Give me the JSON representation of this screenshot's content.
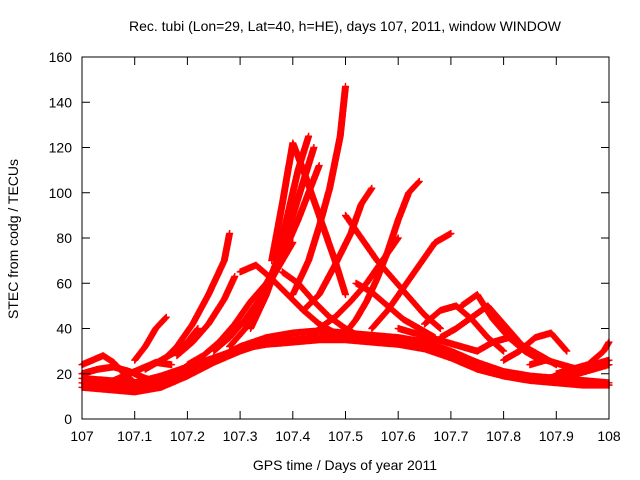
{
  "chart_data": {
    "type": "scatter",
    "title": "Rec. tubi (Lon=29, Lat=40, h=HE), days 107, 2011, window WINDOW",
    "xlabel": "GPS time / Days of year 2011",
    "ylabel": "STEC from codg / TECUs",
    "xlim": [
      107,
      108
    ],
    "ylim": [
      0,
      160
    ],
    "xticks": [
      107,
      107.1,
      107.2,
      107.3,
      107.4,
      107.5,
      107.6,
      107.7,
      107.8,
      107.9,
      108
    ],
    "xtick_labels": [
      "107",
      "107.1",
      "107.2",
      "107.3",
      "107.4",
      "107.5",
      "107.6",
      "107.7",
      "107.8",
      "107.9",
      "108"
    ],
    "yticks": [
      0,
      20,
      40,
      60,
      80,
      100,
      120,
      140,
      160
    ],
    "ytick_labels": [
      "0",
      "20",
      "40",
      "60",
      "80",
      "100",
      "120",
      "140",
      "160"
    ],
    "marker": "+",
    "color": "#ff0000",
    "grid": false,
    "legend": "none",
    "series": [
      {
        "x": [
          107.0,
          107.05,
          107.1,
          107.15,
          107.2,
          107.25,
          107.3,
          107.35,
          107.4,
          107.45,
          107.5,
          107.55,
          107.6,
          107.65,
          107.7,
          107.75,
          107.8,
          107.85,
          107.9,
          107.95,
          108.0
        ],
        "values": [
          14,
          13,
          12,
          14,
          19,
          25,
          30,
          34,
          35,
          36,
          36,
          35,
          34,
          32,
          28,
          23,
          19,
          17,
          16,
          15,
          15
        ]
      },
      {
        "x": [
          107.0,
          107.05,
          107.1,
          107.15,
          107.2,
          107.25,
          107.3,
          107.35,
          107.4,
          107.45,
          107.5,
          107.55,
          107.6,
          107.65,
          107.7,
          107.75,
          107.8,
          107.85,
          107.9,
          107.95,
          108.0
        ],
        "values": [
          16,
          15,
          14,
          17,
          21,
          26,
          32,
          36,
          38,
          39,
          38,
          37,
          36,
          34,
          30,
          25,
          21,
          19,
          18,
          17,
          16
        ]
      },
      {
        "x": [
          107.0,
          107.05,
          107.1,
          107.15,
          107.2,
          107.25,
          107.3,
          107.35,
          107.4,
          107.45,
          107.5,
          107.55,
          107.6,
          107.65,
          107.7,
          107.75,
          107.8,
          107.85,
          107.9,
          107.95,
          108.0
        ],
        "values": [
          18,
          17,
          16,
          19,
          23,
          27,
          31,
          33,
          34,
          35,
          35,
          34,
          33,
          31,
          27,
          22,
          19,
          18,
          17,
          16,
          15
        ]
      },
      {
        "x": [
          107.0,
          107.02,
          107.04,
          107.06,
          107.08,
          107.1
        ],
        "values": [
          24,
          26,
          28,
          25,
          20,
          16
        ]
      },
      {
        "x": [
          107.0,
          107.03,
          107.06,
          107.09,
          107.12,
          107.15
        ],
        "values": [
          20,
          22,
          23,
          21,
          18,
          16
        ]
      },
      {
        "x": [
          107.02,
          107.05,
          107.08,
          107.11,
          107.14,
          107.17
        ],
        "values": [
          14,
          16,
          19,
          22,
          25,
          24
        ]
      },
      {
        "x": [
          107.1,
          107.12,
          107.14,
          107.16
        ],
        "values": [
          26,
          32,
          40,
          45
        ]
      },
      {
        "x": [
          107.12,
          107.15,
          107.18,
          107.2,
          107.22
        ],
        "values": [
          22,
          26,
          30,
          34,
          40
        ]
      },
      {
        "x": [
          107.15,
          107.18,
          107.21,
          107.24,
          107.27,
          107.28
        ],
        "values": [
          25,
          32,
          42,
          55,
          70,
          82
        ]
      },
      {
        "x": [
          107.18,
          107.21,
          107.24,
          107.27,
          107.29
        ],
        "values": [
          28,
          34,
          42,
          53,
          63
        ]
      },
      {
        "x": [
          107.2,
          107.23,
          107.26,
          107.29,
          107.32,
          107.35
        ],
        "values": [
          24,
          28,
          34,
          42,
          52,
          60
        ]
      },
      {
        "x": [
          107.25,
          107.28,
          107.31,
          107.34,
          107.37,
          107.4
        ],
        "values": [
          30,
          36,
          44,
          54,
          66,
          78
        ]
      },
      {
        "x": [
          107.28,
          107.31,
          107.34,
          107.37,
          107.39,
          107.41,
          107.43
        ],
        "values": [
          32,
          40,
          52,
          70,
          90,
          110,
          125
        ]
      },
      {
        "x": [
          107.32,
          107.35,
          107.38,
          107.4,
          107.42,
          107.44
        ],
        "values": [
          40,
          55,
          75,
          90,
          105,
          120
        ]
      },
      {
        "x": [
          107.36,
          107.38,
          107.4,
          107.42,
          107.45,
          107.48,
          107.5
        ],
        "values": [
          70,
          95,
          122,
          110,
          90,
          70,
          55
        ]
      },
      {
        "x": [
          107.35,
          107.38,
          107.41,
          107.43,
          107.45
        ],
        "values": [
          60,
          72,
          88,
          100,
          112
        ]
      },
      {
        "x": [
          107.3,
          107.33,
          107.36,
          107.39,
          107.42,
          107.45,
          107.48
        ],
        "values": [
          65,
          68,
          62,
          55,
          48,
          42,
          38
        ]
      },
      {
        "x": [
          107.38,
          107.41,
          107.44,
          107.47,
          107.5,
          107.53
        ],
        "values": [
          65,
          60,
          52,
          45,
          40,
          36
        ]
      },
      {
        "x": [
          107.4,
          107.43,
          107.45,
          107.47,
          107.49,
          107.5
        ],
        "values": [
          55,
          70,
          85,
          102,
          125,
          147
        ]
      },
      {
        "x": [
          107.42,
          107.45,
          107.48,
          107.51,
          107.53,
          107.55
        ],
        "values": [
          48,
          55,
          68,
          82,
          95,
          102
        ]
      },
      {
        "x": [
          107.45,
          107.48,
          107.51,
          107.54,
          107.57,
          107.6
        ],
        "values": [
          40,
          45,
          52,
          60,
          70,
          80
        ]
      },
      {
        "x": [
          107.5,
          107.52,
          107.54,
          107.56,
          107.58,
          107.6,
          107.62,
          107.64
        ],
        "values": [
          38,
          44,
          52,
          62,
          74,
          88,
          100,
          105
        ]
      },
      {
        "x": [
          107.5,
          107.53,
          107.56,
          107.59,
          107.62,
          107.65,
          107.68
        ],
        "values": [
          90,
          80,
          70,
          62,
          54,
          46,
          40
        ]
      },
      {
        "x": [
          107.55,
          107.58,
          107.61,
          107.64,
          107.67,
          107.7
        ],
        "values": [
          40,
          48,
          58,
          68,
          78,
          82
        ]
      },
      {
        "x": [
          107.52,
          107.55,
          107.58,
          107.61,
          107.64,
          107.67
        ],
        "values": [
          60,
          56,
          50,
          44,
          40,
          36
        ]
      },
      {
        "x": [
          107.6,
          107.63,
          107.66,
          107.69,
          107.72,
          107.75
        ],
        "values": [
          40,
          38,
          36,
          34,
          32,
          30
        ]
      },
      {
        "x": [
          107.65,
          107.68,
          107.71,
          107.74,
          107.77,
          107.8
        ],
        "values": [
          42,
          48,
          50,
          44,
          36,
          30
        ]
      },
      {
        "x": [
          107.68,
          107.71,
          107.74,
          107.77,
          107.8,
          107.83
        ],
        "values": [
          36,
          40,
          45,
          50,
          42,
          34
        ]
      },
      {
        "x": [
          107.72,
          107.75,
          107.78,
          107.81,
          107.84,
          107.87
        ],
        "values": [
          50,
          55,
          44,
          36,
          30,
          26
        ]
      },
      {
        "x": [
          107.75,
          107.78,
          107.81,
          107.84,
          107.87,
          107.9
        ],
        "values": [
          30,
          34,
          36,
          32,
          28,
          24
        ]
      },
      {
        "x": [
          107.8,
          107.83,
          107.86,
          107.89,
          107.92
        ],
        "values": [
          26,
          30,
          36,
          38,
          30
        ]
      },
      {
        "x": [
          107.85,
          107.88,
          107.91,
          107.94,
          107.97,
          108.0
        ],
        "values": [
          24,
          26,
          24,
          22,
          24,
          26
        ]
      },
      {
        "x": [
          107.9,
          107.93,
          107.96,
          107.99,
          108.0
        ],
        "values": [
          20,
          22,
          24,
          30,
          34
        ]
      },
      {
        "x": [
          107.88,
          107.91,
          107.94,
          107.97,
          108.0
        ],
        "values": [
          18,
          19,
          20,
          22,
          24
        ]
      }
    ]
  }
}
